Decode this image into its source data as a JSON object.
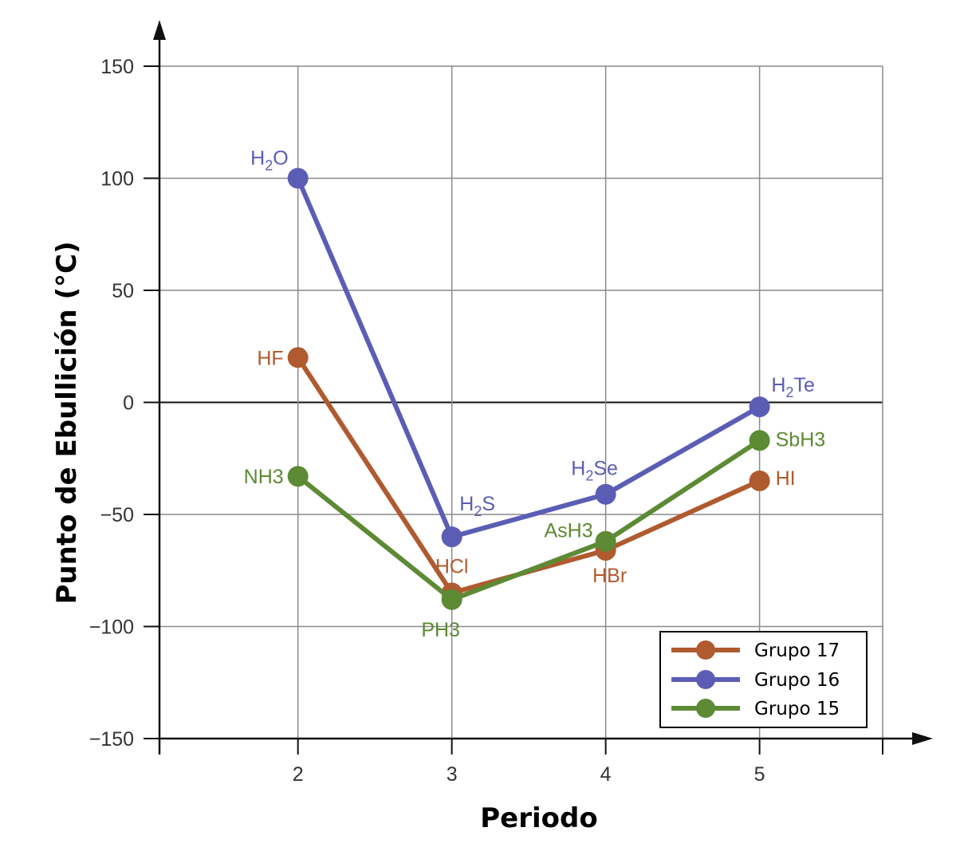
{
  "chart_data": {
    "type": "line",
    "xlabel": "Periodo",
    "ylabel": "Punto de Ebullición (°C)",
    "x": [
      2,
      3,
      4,
      5
    ],
    "x_tick_labels": [
      "2",
      "3",
      "4",
      "5"
    ],
    "xlim": [
      1.1,
      5.8
    ],
    "ylim": [
      -150,
      150
    ],
    "y_ticks": [
      150,
      100,
      50,
      0,
      -50,
      -100,
      -150
    ],
    "y_tick_labels": [
      "150",
      "100",
      "50",
      "0",
      "−50",
      "−100",
      "−150"
    ],
    "grid": true,
    "legend_position": "bottom-right",
    "series": [
      {
        "name": "Grupo 17",
        "color": "#b05a2f",
        "values": [
          20,
          -85,
          -66,
          -35
        ],
        "labels": [
          "HF",
          "HCl",
          "HBr",
          "HI"
        ]
      },
      {
        "name": "Grupo 16",
        "color": "#5b5db5",
        "values": [
          100,
          -60,
          -41,
          -2
        ],
        "labels": [
          "H2O",
          "H2S",
          "H2Se",
          "H2Te"
        ]
      },
      {
        "name": "Grupo 15",
        "color": "#5d8a35",
        "values": [
          -33,
          -88,
          -62,
          -17
        ],
        "labels": [
          "NH3",
          "PH3",
          "AsH3",
          "SbH3"
        ]
      }
    ]
  }
}
